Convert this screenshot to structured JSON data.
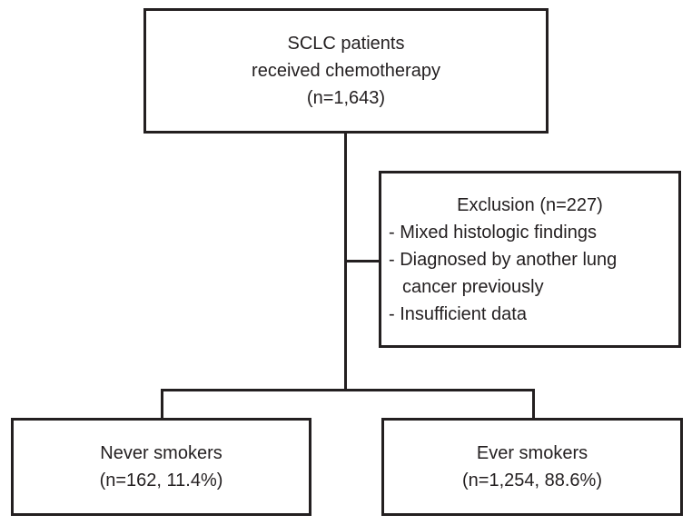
{
  "diagram": {
    "colors": {
      "text": "#231f20",
      "box_border": "#231f20",
      "connector": "#231f20",
      "background": "#ffffff"
    },
    "top_box": {
      "lines": [
        "SCLC patients",
        "received chemotherapy",
        "(n=1,643)"
      ]
    },
    "exclusion_box": {
      "title": "Exclusion (n=227)",
      "items": [
        "- Mixed histologic findings",
        "- Diagnosed by another lung cancer previously",
        "- Insufficient data"
      ]
    },
    "never_smokers_box": {
      "lines": [
        "Never smokers",
        "(n=162, 11.4%)"
      ]
    },
    "ever_smokers_box": {
      "lines": [
        "Ever smokers",
        "(n=1,254, 88.6%)"
      ]
    }
  }
}
